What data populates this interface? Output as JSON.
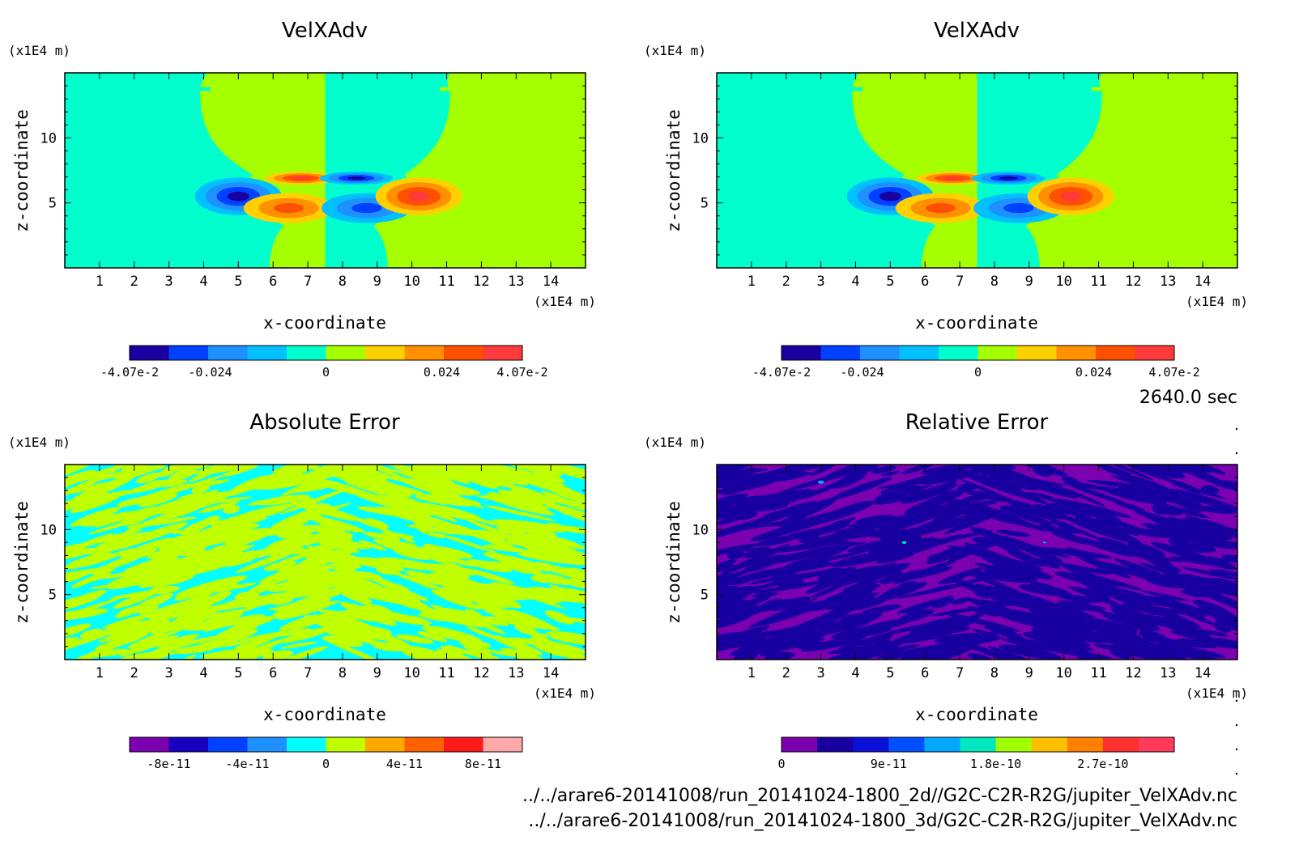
{
  "files": [
    "../../arare6-20141008/run_20141024-1800_2d//G2C-C2R-R2G/jupiter_VelXAdv.nc",
    "../../arare6-20141008/run_20141024-1800_3d/G2C-C2R-R2G/jupiter_VelXAdv.nc"
  ],
  "time_label": "2640.0 sec",
  "chart_data": [
    {
      "type": "heatmap",
      "title": "VelXAdv",
      "xlabel": "x-coordinate",
      "ylabel": "z-coordinate",
      "xunit": "(x1E4 m)",
      "yunit": "(x1E4 m)",
      "xlim": [
        0,
        15
      ],
      "ylim": [
        0,
        15
      ],
      "xticks": [
        "1",
        "2",
        "3",
        "4",
        "5",
        "6",
        "7",
        "8",
        "9",
        "10",
        "11",
        "12",
        "13",
        "14"
      ],
      "yticks": [
        "5",
        "10"
      ],
      "colorbar": {
        "labels": [
          "-4.07e-2",
          "-0.024",
          "0",
          "0.024",
          "4.07e-2"
        ],
        "label_values": [
          -0.0407,
          -0.024,
          0,
          0.024,
          0.0407
        ],
        "range": [
          -0.0407,
          0.0407
        ],
        "colors": [
          "#1a00a0",
          "#0040ff",
          "#1e90ff",
          "#00c0ff",
          "#00ffcc",
          "#a6ff00",
          "#ffd000",
          "#ff9000",
          "#ff5000",
          "#ff3a3a"
        ]
      }
    },
    {
      "type": "heatmap",
      "title": "VelXAdv",
      "xlabel": "x-coordinate",
      "ylabel": "z-coordinate",
      "xunit": "(x1E4 m)",
      "yunit": "(x1E4 m)",
      "xlim": [
        0,
        15
      ],
      "ylim": [
        0,
        15
      ],
      "xticks": [
        "1",
        "2",
        "3",
        "4",
        "5",
        "6",
        "7",
        "8",
        "9",
        "10",
        "11",
        "12",
        "13",
        "14"
      ],
      "yticks": [
        "5",
        "10"
      ],
      "colorbar": {
        "labels": [
          "-4.07e-2",
          "-0.024",
          "0",
          "0.024",
          "4.07e-2"
        ],
        "label_values": [
          -0.0407,
          -0.024,
          0,
          0.024,
          0.0407
        ],
        "range": [
          -0.0407,
          0.0407
        ],
        "colors": [
          "#1a00a0",
          "#0040ff",
          "#1e90ff",
          "#00c0ff",
          "#00ffcc",
          "#a6ff00",
          "#ffd000",
          "#ff9000",
          "#ff5000",
          "#ff3a3a"
        ]
      }
    },
    {
      "type": "heatmap",
      "title": "Absolute Error",
      "xlabel": "x-coordinate",
      "ylabel": "z-coordinate",
      "xunit": "(x1E4 m)",
      "yunit": "(x1E4 m)",
      "xlim": [
        0,
        15
      ],
      "ylim": [
        0,
        15
      ],
      "xticks": [
        "1",
        "2",
        "3",
        "4",
        "5",
        "6",
        "7",
        "8",
        "9",
        "10",
        "11",
        "12",
        "13",
        "14"
      ],
      "yticks": [
        "5",
        "10"
      ],
      "colorbar": {
        "labels": [
          "-8e-11",
          "-4e-11",
          "0",
          "4e-11",
          "8e-11"
        ],
        "label_values": [
          -8e-11,
          -4e-11,
          0,
          4e-11,
          8e-11
        ],
        "range": [
          -1e-10,
          1e-10
        ],
        "colors": [
          "#7a00b0",
          "#1800c0",
          "#0040ff",
          "#1e90ff",
          "#00ffff",
          "#c0ff00",
          "#ffa800",
          "#ff6000",
          "#ff1a1a",
          "#ffa8a8"
        ]
      }
    },
    {
      "type": "heatmap",
      "title": "Relative Error",
      "xlabel": "x-coordinate",
      "ylabel": "z-coordinate",
      "xunit": "(x1E4 m)",
      "yunit": "(x1E4 m)",
      "xlim": [
        0,
        15
      ],
      "ylim": [
        0,
        15
      ],
      "xticks": [
        "1",
        "2",
        "3",
        "4",
        "5",
        "6",
        "7",
        "8",
        "9",
        "10",
        "11",
        "12",
        "13",
        "14"
      ],
      "yticks": [
        "5",
        "10"
      ],
      "colorbar": {
        "labels": [
          "0",
          "9e-11",
          "1.8e-10",
          "2.7e-10"
        ],
        "label_values": [
          0,
          9e-11,
          1.8e-10,
          2.7e-10
        ],
        "range": [
          0,
          3.3e-10
        ],
        "colors": [
          "#7a00b0",
          "#1800a0",
          "#0a10d8",
          "#0050ff",
          "#00a8ff",
          "#00e8c0",
          "#a0ff00",
          "#ffc000",
          "#ff8000",
          "#ff3030",
          "#ff3a5a"
        ]
      }
    }
  ]
}
